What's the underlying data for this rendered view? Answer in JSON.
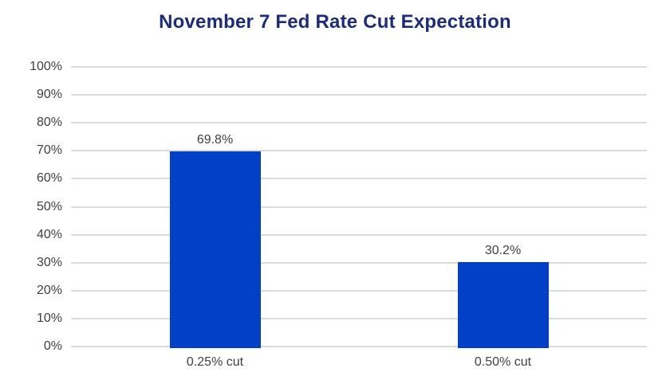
{
  "title": "November 7 Fed Rate Cut Expectation",
  "colors": {
    "title": "#1B2B7D",
    "bar": "#0340C8",
    "label_text": "#3F3F3F",
    "gridline": "#DBDBDB",
    "background": "#FFFFFF"
  },
  "chart_data": {
    "type": "bar",
    "title": "November 7 Fed Rate Cut Expectation",
    "categories": [
      "0.25% cut",
      "0.50% cut"
    ],
    "values": [
      69.8,
      30.2
    ],
    "value_labels": [
      "69.8%",
      "30.2%"
    ],
    "xlabel": "",
    "ylabel": "",
    "ylim": [
      0,
      100
    ],
    "ytick_step": 10,
    "ytick_labels": [
      "0%",
      "10%",
      "20%",
      "30%",
      "40%",
      "50%",
      "60%",
      "70%",
      "80%",
      "90%",
      "100%"
    ],
    "grid": "horizontal",
    "legend": "none"
  }
}
